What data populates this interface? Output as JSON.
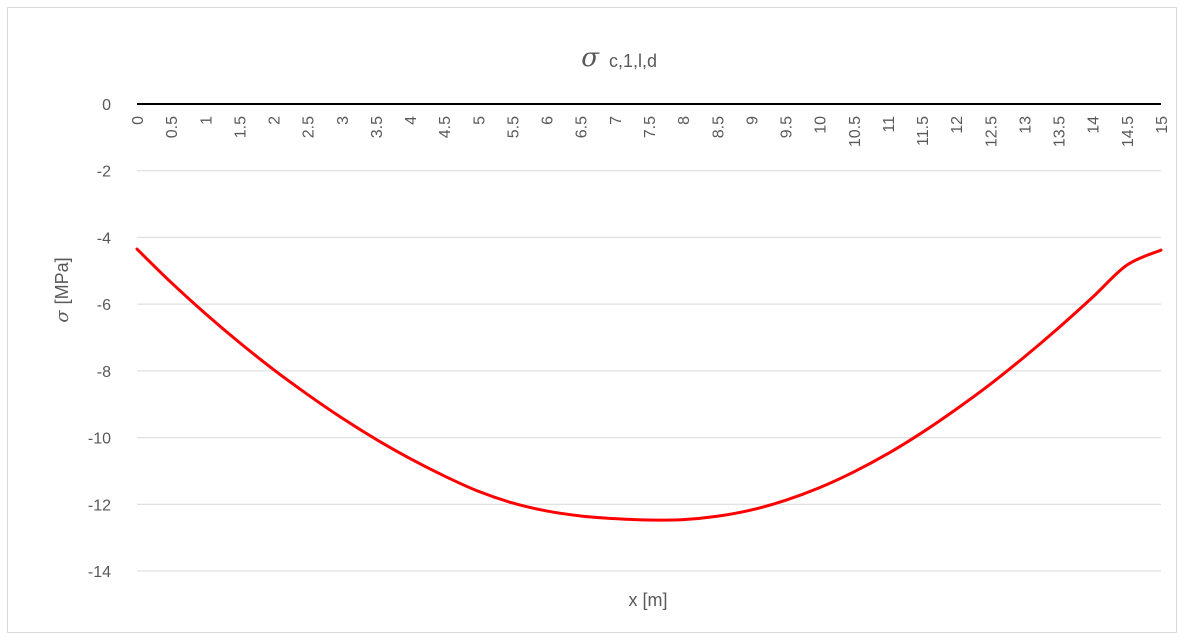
{
  "chart_data": {
    "type": "line",
    "title": "σ",
    "title_subscript": "c,1,l,d",
    "xlabel": "x [m]",
    "ylabel_symbol": "σ",
    "ylabel_unit": "[MPa]",
    "ylim": [
      -14,
      0
    ],
    "yticks": [
      0,
      -2,
      -4,
      -6,
      -8,
      -10,
      -12,
      -14
    ],
    "xlim": [
      0,
      15
    ],
    "x_categories": [
      "0",
      "0.5",
      "1",
      "1.5",
      "2",
      "2.5",
      "3",
      "3.5",
      "4",
      "4.5",
      "5",
      "5.5",
      "6",
      "6.5",
      "7",
      "7.5",
      "8",
      "8.5",
      "9",
      "9.5",
      "10",
      "10.5",
      "11",
      "11.5",
      "12",
      "12.5",
      "13",
      "13.5",
      "14",
      "14.5",
      "15"
    ],
    "grid": true,
    "legend": "none",
    "series": [
      {
        "color": "#ff0000",
        "x": [
          0,
          0.5,
          1,
          1.5,
          2,
          2.5,
          3,
          3.5,
          4,
          4.5,
          5,
          5.5,
          6,
          6.5,
          7,
          7.5,
          8,
          8.5,
          9,
          9.5,
          10,
          10.5,
          11,
          11.5,
          12,
          12.5,
          13,
          13.5,
          14,
          14.5,
          15
        ],
        "values": [
          -4.35,
          -5.35,
          -6.28,
          -7.15,
          -7.96,
          -8.71,
          -9.41,
          -10.05,
          -10.63,
          -11.15,
          -11.61,
          -11.96,
          -12.2,
          -12.35,
          -12.43,
          -12.47,
          -12.46,
          -12.36,
          -12.17,
          -11.88,
          -11.5,
          -11.03,
          -10.48,
          -9.85,
          -9.15,
          -8.4,
          -7.58,
          -6.71,
          -5.79,
          -4.83,
          -4.38
        ]
      }
    ]
  }
}
